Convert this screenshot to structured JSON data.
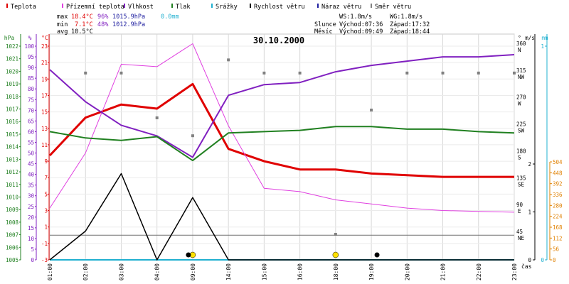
{
  "legend": [
    {
      "label": "Teplota",
      "color": "#e00000"
    },
    {
      "label": "Přízemní teplota",
      "color": "#e040e0"
    },
    {
      "label": "Vlhkost",
      "color": "#8020c0"
    },
    {
      "label": "Tlak",
      "color": "#208020"
    },
    {
      "label": "Srážky",
      "color": "#20b0d0"
    },
    {
      "label": "Rychlost větru",
      "color": "#000000"
    },
    {
      "label": "Náraz větru",
      "color": "#2020a0"
    },
    {
      "label": "Směr větru",
      "color": "#808080"
    }
  ],
  "stats": {
    "max_label": "max",
    "min_label": "min",
    "avg_label": "avg",
    "max_temp": "18.4°C",
    "max_hum": "96%",
    "max_press": "1015.9hPa",
    "max_rain": "0.0mm",
    "min_temp": "7.1°C",
    "min_hum": "48%",
    "min_press": "1012.9hPa",
    "avg_temp": "10.5°C"
  },
  "info": {
    "ws": "WS:1.8m/s",
    "wg": "WG:1.8m/s",
    "sun": "Slunce",
    "sun_rise": "Východ:07:36",
    "sun_set": "Západ:17:32",
    "moon": "Měsíc",
    "moon_rise": "Východ:09:49",
    "moon_set": "Západ:18:44"
  },
  "chart_data": {
    "type": "line",
    "title": "30.10.2000",
    "x_unit_label": "čas",
    "categories": [
      "01:00",
      "02:00",
      "03:00",
      "04:00",
      "09:00",
      "14:00",
      "15:00",
      "16:00",
      "18:00",
      "19:00",
      "20:00",
      "21:00",
      "22:00",
      "23:00"
    ],
    "series": [
      {
        "name": "Teplota",
        "axis": "temp",
        "color": "#e00000",
        "values": [
          9.7,
          14.3,
          15.9,
          15.4,
          18.4,
          10.5,
          9.0,
          8.0,
          8.0,
          7.5,
          7.3,
          7.1,
          7.1,
          7.1
        ]
      },
      {
        "name": "Přízemní teplota",
        "axis": "temp",
        "color": "#e040e0",
        "values": [
          3.3,
          10.0,
          20.8,
          20.5,
          23.3,
          13.3,
          5.7,
          5.3,
          4.3,
          3.8,
          3.3,
          3.0,
          2.9,
          2.8
        ]
      },
      {
        "name": "Vlhkost",
        "axis": "hum",
        "color": "#8020c0",
        "values": [
          89,
          74,
          63,
          58,
          48,
          77,
          82,
          83,
          88,
          91,
          93,
          95,
          95,
          96
        ]
      },
      {
        "name": "Tlak",
        "axis": "press",
        "color": "#208020",
        "values": [
          1015.2,
          1014.7,
          1014.5,
          1014.8,
          1012.9,
          1015.1,
          1015.2,
          1015.3,
          1015.6,
          1015.6,
          1015.4,
          1015.4,
          1015.2,
          1015.1
        ]
      },
      {
        "name": "Rychlost větru",
        "axis": "wind",
        "color": "#000000",
        "values": [
          0.0,
          0.6,
          1.8,
          0.0,
          1.3,
          0.0,
          0.0,
          0.0,
          0.0,
          0.0,
          0.0,
          0.0,
          0.0,
          0.0
        ]
      },
      {
        "name": "Směr větru",
        "axis": "dir",
        "color": "#808080",
        "markers": true,
        "values": [
          null,
          315,
          315,
          240,
          210,
          337,
          315,
          315,
          45,
          253,
          315,
          315,
          315,
          315
        ]
      }
    ],
    "sun_markers": [
      {
        "x": "09:00"
      },
      {
        "x": "18:00"
      }
    ],
    "moon_markers": [
      {
        "x": "09:00"
      },
      {
        "x": "19:00"
      }
    ],
    "axes": {
      "hpa": {
        "label": "hPa",
        "color": "#208020",
        "ticks": [
          1005,
          1006,
          1007,
          1008,
          1009,
          1010,
          1011,
          1012,
          1013,
          1014,
          1015,
          1016,
          1017,
          1018,
          1019,
          1020,
          1021,
          1022
        ]
      },
      "hum": {
        "label": "%",
        "color": "#8020c0",
        "ticks": [
          0,
          5,
          10,
          15,
          20,
          25,
          30,
          35,
          40,
          45,
          50,
          55,
          60,
          65,
          70,
          75,
          80,
          85,
          90,
          95,
          100
        ]
      },
      "temp": {
        "label": "°C",
        "color": "#e00000",
        "ticks": [
          -3,
          -1,
          1,
          3,
          5,
          7,
          9,
          11,
          13,
          15,
          17,
          19,
          21,
          23
        ]
      },
      "dir": {
        "label": "°",
        "ticks": [
          {
            "v": 360,
            "l": "360",
            "c": "N"
          },
          {
            "v": 315,
            "l": "315",
            "c": "NW"
          },
          {
            "v": 270,
            "l": "270",
            "c": "W"
          },
          {
            "v": 225,
            "l": "225",
            "c": "SW"
          },
          {
            "v": 180,
            "l": "180",
            "c": "S"
          },
          {
            "v": 135,
            "l": "135",
            "c": "SE"
          },
          {
            "v": 90,
            "l": "90",
            "c": "E"
          },
          {
            "v": 45,
            "l": "45",
            "c": "NE"
          }
        ]
      },
      "wind": {
        "label": "m/s",
        "ticks": [
          0,
          1,
          2
        ]
      },
      "rain": {
        "label": "mm",
        "color": "#20b0d0",
        "ticks": [
          0,
          1
        ]
      },
      "rain2": {
        "color": "#e08000",
        "ticks": [
          0,
          56,
          112,
          168,
          224,
          280,
          336,
          392,
          448,
          504
        ]
      }
    }
  }
}
